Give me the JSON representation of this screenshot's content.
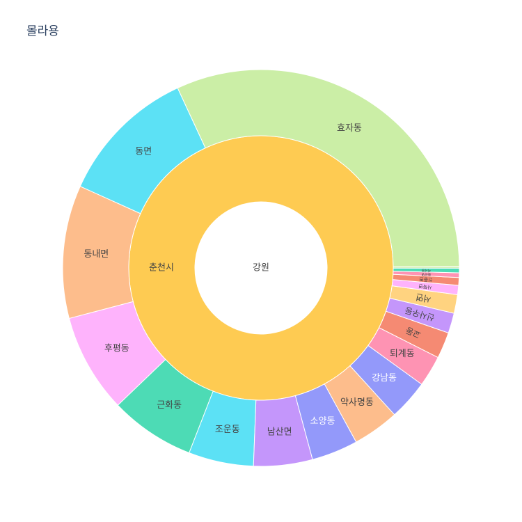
{
  "chart_data": {
    "type": "sunburst",
    "title": "몰라용",
    "root": {
      "label": "강원",
      "color": "#ffffff"
    },
    "middle": {
      "label": "춘천시",
      "color": "#fecb52"
    },
    "leaves": [
      {
        "label": "효자동",
        "value": 252,
        "color": "#cbeea6",
        "text_color": "#444444"
      },
      {
        "label": "동면",
        "value": 90,
        "color": "#5ce1f5",
        "text_color": "#444444"
      },
      {
        "label": "동내면",
        "value": 86,
        "color": "#fdbd8c",
        "text_color": "#444444"
      },
      {
        "label": "후평동",
        "value": 64,
        "color": "#feb3fc",
        "text_color": "#444444"
      },
      {
        "label": "근화동",
        "value": 55,
        "color": "#4ddbb5",
        "text_color": "#444444"
      },
      {
        "label": "조운동",
        "value": 42,
        "color": "#5ce1f5",
        "text_color": "#444444"
      },
      {
        "label": "남산면",
        "value": 38,
        "color": "#c496fb",
        "text_color": "#444444"
      },
      {
        "label": "소양동",
        "value": 30,
        "color": "#9399fa",
        "text_color": "#ffffff"
      },
      {
        "label": "약사명동",
        "value": 30,
        "color": "#fdbd8c",
        "text_color": "#444444"
      },
      {
        "label": "강남동",
        "value": 26,
        "color": "#9399fa",
        "text_color": "#ffffff"
      },
      {
        "label": "퇴계동",
        "value": 20,
        "color": "#fe93b3",
        "text_color": "#444444"
      },
      {
        "label": "교동",
        "value": 17,
        "color": "#f58a73",
        "text_color": "#444444"
      },
      {
        "label": "신사우동",
        "value": 13,
        "color": "#c496fb",
        "text_color": "#444444"
      },
      {
        "label": "서면",
        "value": 12,
        "color": "#ffd380",
        "text_color": "#444444"
      },
      {
        "label": "사북면",
        "value": 6,
        "color": "#feb3fc",
        "text_color": "#444444"
      },
      {
        "label": "신동면",
        "value": 5,
        "color": "#f58a73",
        "text_color": "#444444"
      },
      {
        "label": "동산면",
        "value": 3,
        "color": "#fe93b3",
        "text_color": "#444444"
      },
      {
        "label": "석사동",
        "value": 3,
        "color": "#4ddbb5",
        "text_color": "#444444"
      },
      {
        "label": "",
        "value": 1.2,
        "color": "#cbeea6",
        "text_color": "#444444"
      }
    ]
  }
}
